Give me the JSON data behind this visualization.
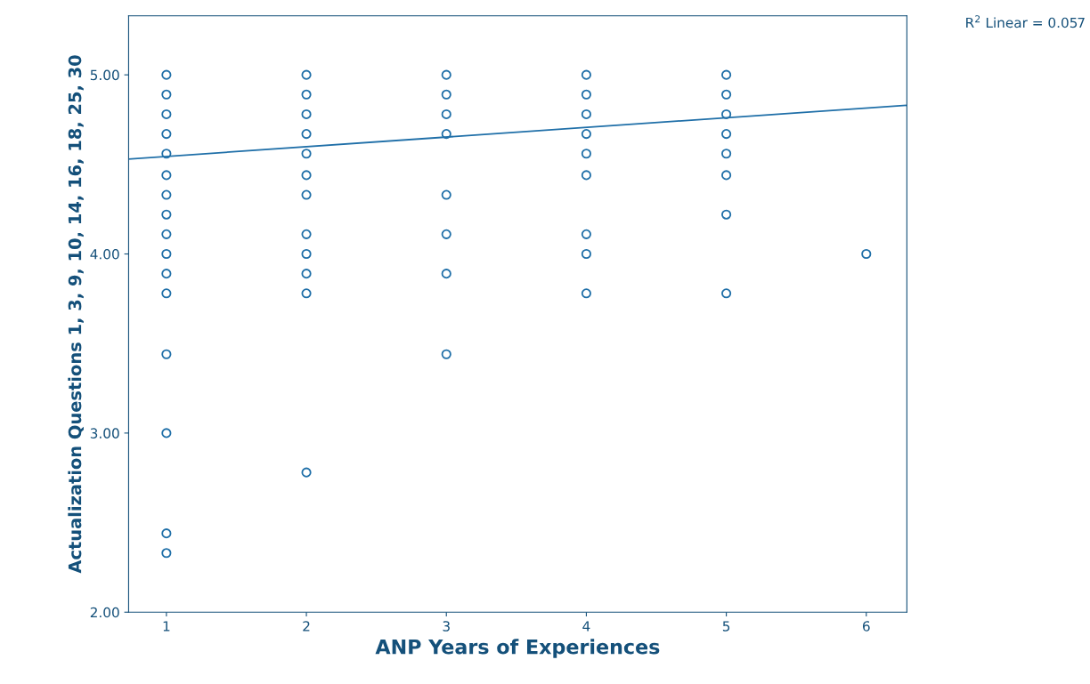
{
  "chart_data": {
    "type": "scatter",
    "xlabel": "ANP Years of Experiences",
    "ylabel": "Actualization Questions 1, 3, 9, 10, 14, 16, 18, 25, 30",
    "xlim": [
      0.73,
      6.29
    ],
    "xticks": [
      1,
      2,
      3,
      4,
      5,
      6
    ],
    "ylim": [
      2.0,
      5.33
    ],
    "yticks": [
      {
        "value": 2,
        "label": "2.00"
      },
      {
        "value": 3,
        "label": "3.00"
      },
      {
        "value": 4,
        "label": "4.00"
      },
      {
        "value": 5,
        "label": "5.00"
      }
    ],
    "marker": "circle",
    "grid": false,
    "legend": false,
    "annotations": [
      "R$^{2}$ Linear = 0.057"
    ],
    "series": [
      {
        "color": "#1f6fa8",
        "x": [
          1,
          1,
          1,
          1,
          1,
          1,
          1,
          1,
          1,
          1,
          1,
          1,
          1,
          1,
          1,
          1,
          2,
          2,
          2,
          2,
          2,
          2,
          2,
          2,
          2,
          2,
          2,
          2,
          3,
          3,
          3,
          3,
          3,
          3,
          3,
          3,
          4,
          4,
          4,
          4,
          4,
          4,
          4,
          4,
          4,
          5,
          5,
          5,
          5,
          5,
          5,
          5,
          5,
          6
        ],
        "values": [
          5.0,
          4.89,
          4.78,
          4.67,
          4.56,
          4.44,
          4.33,
          4.22,
          4.11,
          4.0,
          3.89,
          3.78,
          3.44,
          3.0,
          2.44,
          2.33,
          5.0,
          4.89,
          4.78,
          4.67,
          4.56,
          4.44,
          4.33,
          4.11,
          4.0,
          3.89,
          3.78,
          2.78,
          5.0,
          4.89,
          4.78,
          4.67,
          4.33,
          4.11,
          3.89,
          3.44,
          5.0,
          4.89,
          4.78,
          4.67,
          4.56,
          4.44,
          4.11,
          4.0,
          3.78,
          5.0,
          4.89,
          4.78,
          4.67,
          4.56,
          4.44,
          4.22,
          3.78,
          4.0
        ]
      },
      {
        "type": "line",
        "marker": "none",
        "color": "#1f6fa8",
        "x": [
          0.73,
          6.29
        ],
        "values": [
          4.53,
          4.83
        ]
      }
    ]
  }
}
